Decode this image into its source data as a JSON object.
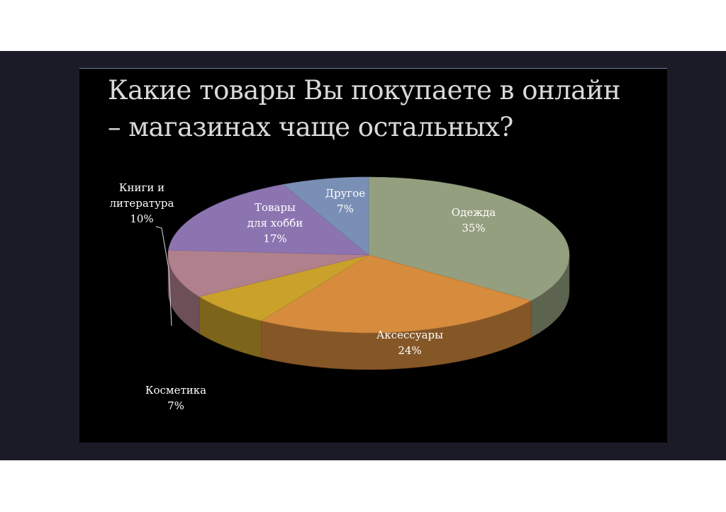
{
  "slide": {
    "title_line1": "Какие товары Вы покупаете в онлайн",
    "title_line2": "– магазинах чаще остальных?"
  },
  "chart_data": {
    "type": "pie",
    "title": "Какие товары Вы покупаете в онлайн – магазинах чаще остальных?",
    "three_d": true,
    "legend": "none",
    "slices": [
      {
        "name": "Одежда",
        "value": 35,
        "label_lines": [
          "Одежда",
          "35%"
        ],
        "color": "#949f7f"
      },
      {
        "name": "Аксессуары",
        "value": 24,
        "label_lines": [
          "Аксессуары",
          "24%"
        ],
        "color": "#d68b3d"
      },
      {
        "name": "Косметика",
        "value": 7,
        "label_lines": [
          "Косметика",
          "7%"
        ],
        "color": "#c9a12b"
      },
      {
        "name": "Книги и литература",
        "value": 10,
        "label_lines": [
          "Книги и",
          "литература",
          "10%"
        ],
        "color": "#b0808c"
      },
      {
        "name": "Товары для хобби",
        "value": 17,
        "label_lines": [
          "Товары",
          "для хобби",
          "17%"
        ],
        "color": "#8c74b1"
      },
      {
        "name": "Другое",
        "value": 7,
        "label_lines": [
          "Другое",
          "7%"
        ],
        "color": "#7a8fb5"
      }
    ]
  }
}
